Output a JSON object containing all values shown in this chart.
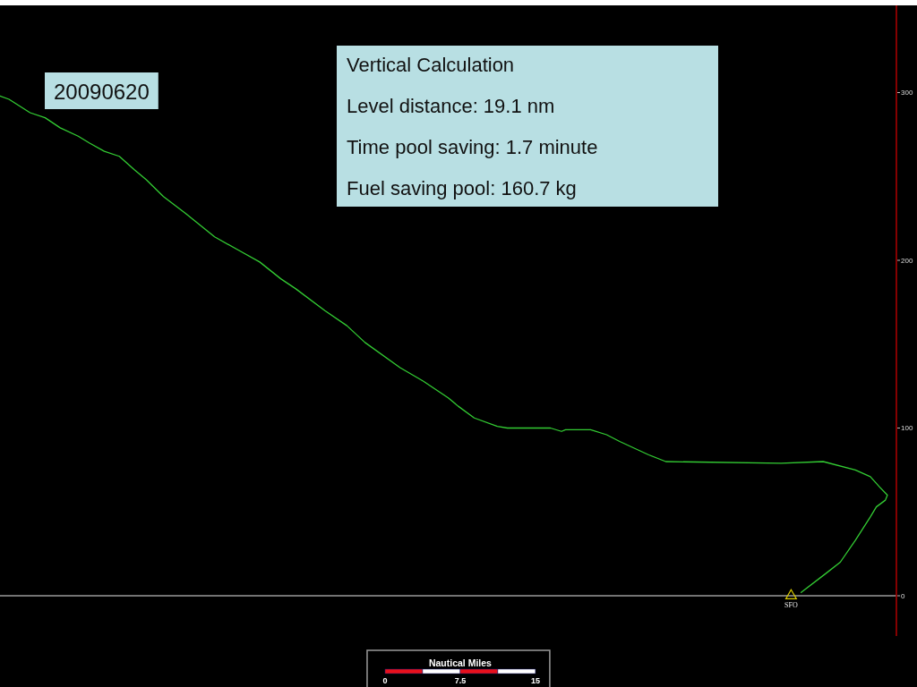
{
  "chart_data": {
    "type": "line",
    "title": "20090620",
    "annotations": [
      "Vertical Calculation",
      "Level distance: 19.1 nm",
      "Time pool saving: 1.7 minute",
      "Fuel saving pool: 160.7 kg"
    ],
    "xlabel": "Nautical Miles",
    "xlim": [
      -38.4,
      51
    ],
    "xticks": [
      0,
      7.5,
      15
    ],
    "ylim": [
      -24,
      352
    ],
    "yticks": [
      0,
      100,
      200,
      300
    ],
    "series": [
      {
        "color": "#33cc33",
        "x": [
          -38.4,
          -37.5,
          -35.4,
          -33.9,
          -32.4,
          -30.6,
          -29.5,
          -28.0,
          -26.5,
          -25.0,
          -23.8,
          -22.1,
          -19.9,
          -17.0,
          -14.6,
          -12.5,
          -10.4,
          -8.9,
          -6.0,
          -3.8,
          -2.0,
          1.5,
          3.8,
          6.3,
          7.3,
          8.9,
          11.2,
          12.2,
          16.5,
          17.6,
          18.0,
          20.5,
          22.1,
          23.4,
          26.3,
          28.0,
          39.5,
          43.7,
          46.9,
          48.4,
          49.3,
          50.1,
          49.9,
          49.0,
          48.4,
          46.9,
          45.4,
          43.9,
          41.5
        ],
        "values": [
          298,
          296,
          288,
          285,
          279,
          274,
          270,
          265,
          262,
          254,
          248,
          238,
          228,
          214,
          206,
          199,
          189,
          183,
          170,
          161,
          151,
          136,
          128,
          118,
          113,
          106,
          101,
          100,
          100,
          98,
          99,
          99,
          96,
          92,
          84,
          80,
          79,
          80,
          75,
          71,
          65,
          60,
          57,
          53,
          47,
          33,
          20,
          13,
          2
        ]
      },
      {
        "type": "scatter",
        "name": "SFO",
        "color": "#d8c800",
        "x": [
          40.5
        ],
        "values": [
          0
        ],
        "marker": "triangle"
      }
    ]
  }
}
